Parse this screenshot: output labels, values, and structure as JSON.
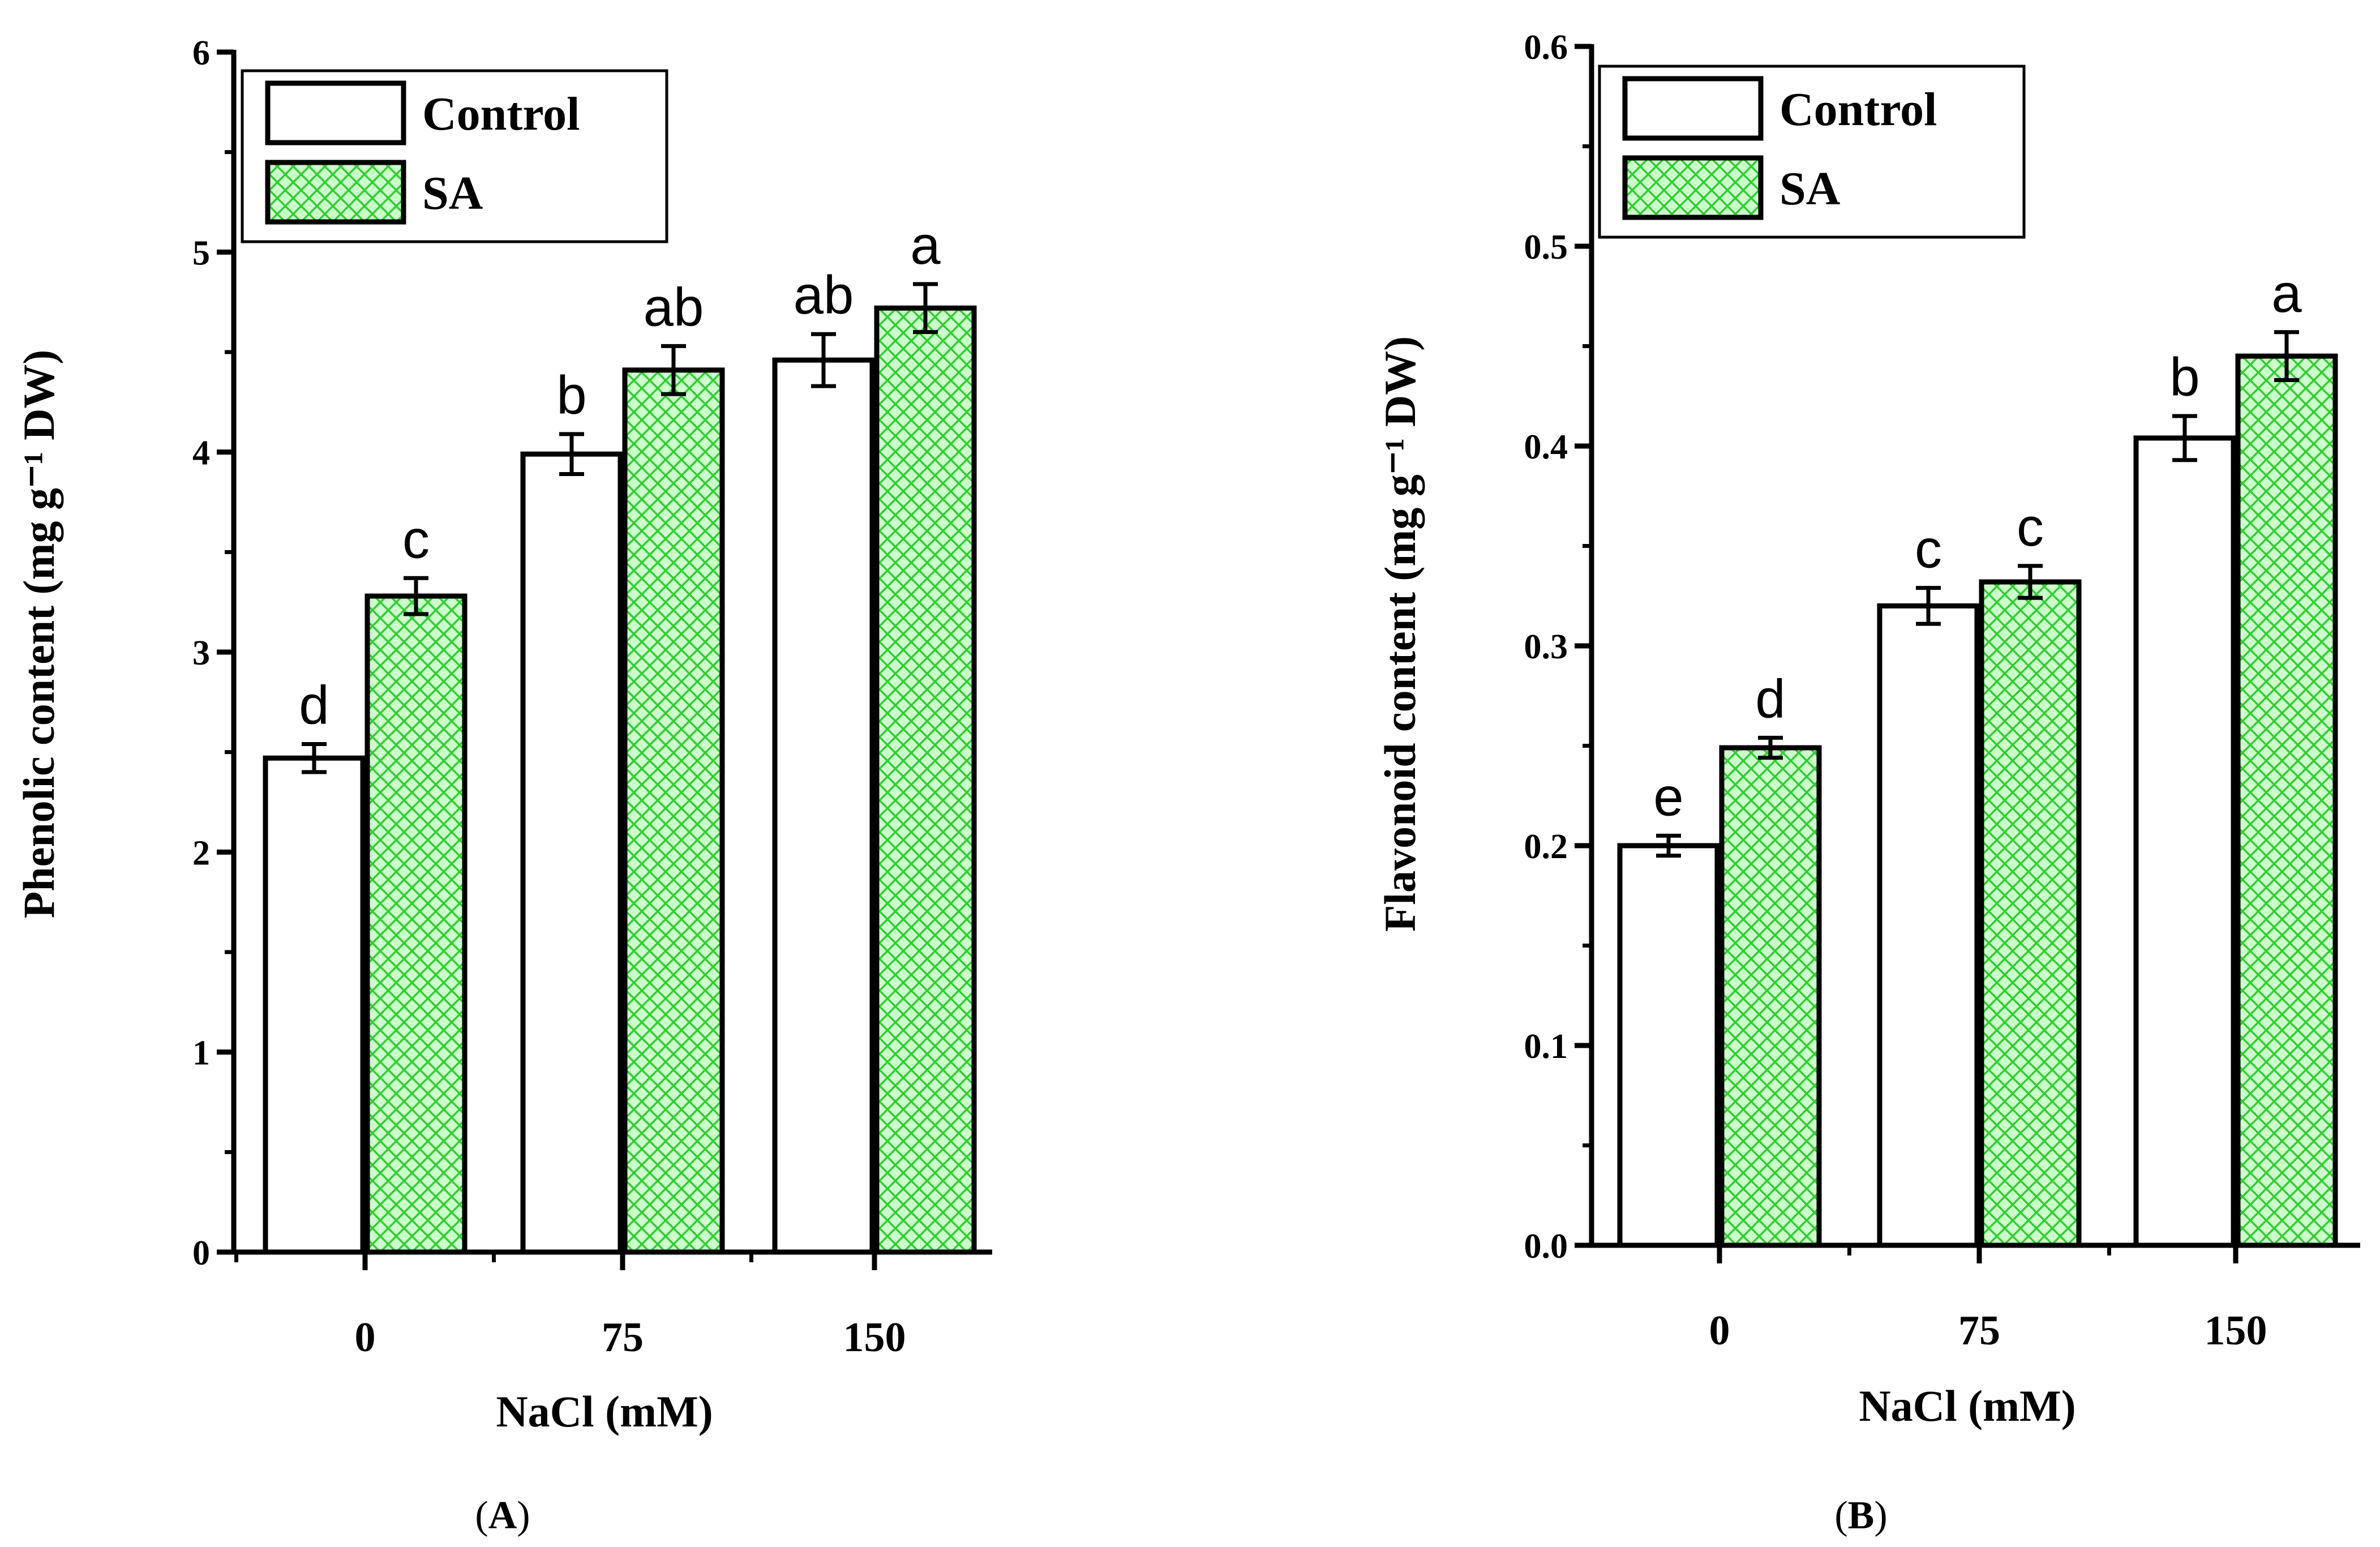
{
  "chart_data": [
    {
      "type": "bar",
      "panel_label": "A",
      "categories": [
        "0",
        "75",
        "150"
      ],
      "xlabel": "NaCl (mM)",
      "ylabel": "Phenolic content (mg g⁻¹ DW)",
      "ylim": [
        0,
        6
      ],
      "yticks": [
        "0",
        "1",
        "2",
        "3",
        "4",
        "5",
        "6"
      ],
      "legend": {
        "position": "top-left"
      },
      "series": [
        {
          "name": "Control",
          "fill": "#ffffff",
          "pattern": "none",
          "values": [
            2.47,
            3.99,
            4.46
          ],
          "errors": [
            0.07,
            0.1,
            0.13
          ],
          "sig": [
            "d",
            "b",
            "ab"
          ]
        },
        {
          "name": "SA",
          "fill": "#ccffcc",
          "pattern": "crosshatch",
          "values": [
            3.28,
            4.41,
            4.72
          ],
          "errors": [
            0.09,
            0.12,
            0.12
          ],
          "sig": [
            "c",
            "ab",
            "a"
          ]
        }
      ]
    },
    {
      "type": "bar",
      "panel_label": "B",
      "categories": [
        "0",
        "75",
        "150"
      ],
      "xlabel": "NaCl (mM)",
      "ylabel": "Flavonoid content (mg g⁻¹ DW)",
      "ylim": [
        0,
        0.6
      ],
      "yticks": [
        "0.0",
        "0.1",
        "0.2",
        "0.3",
        "0.4",
        "0.5",
        "0.6"
      ],
      "legend": {
        "position": "top-left"
      },
      "series": [
        {
          "name": "Control",
          "fill": "#ffffff",
          "pattern": "none",
          "values": [
            0.2,
            0.32,
            0.404
          ],
          "errors": [
            0.005,
            0.009,
            0.011
          ],
          "sig": [
            "e",
            "c",
            "b"
          ]
        },
        {
          "name": "SA",
          "fill": "#ccffcc",
          "pattern": "crosshatch",
          "values": [
            0.249,
            0.332,
            0.445
          ],
          "errors": [
            0.005,
            0.008,
            0.012
          ],
          "sig": [
            "d",
            "c",
            "a"
          ]
        }
      ]
    }
  ],
  "colors": {
    "sa_fill": "#ccffcc",
    "sa_hatch": "#33cc33",
    "control_fill": "#ffffff",
    "axis": "#000000"
  }
}
